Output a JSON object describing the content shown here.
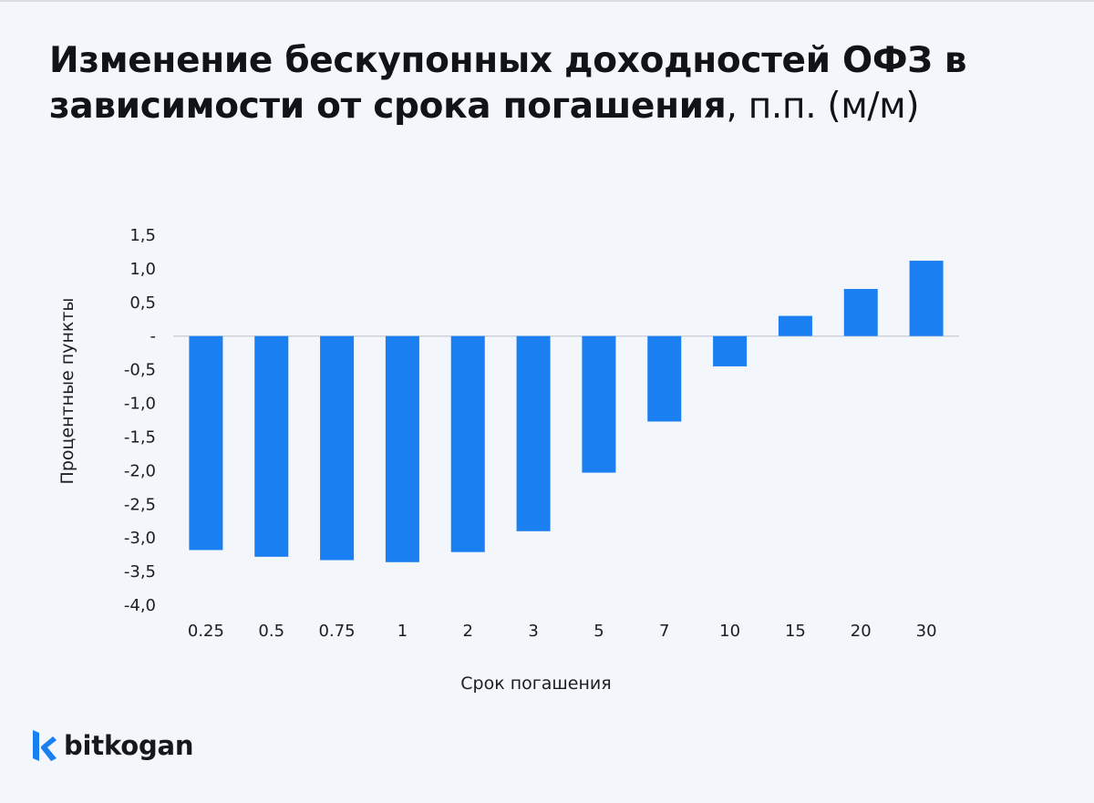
{
  "title": {
    "bold_line1": "Изменение бескупонных доходностей ОФЗ в",
    "bold_line2": "зависимости от срока погашения",
    "unit": ", п.п. (м/м)"
  },
  "brand": {
    "name": "bitkogan",
    "logo_icon": "bitkogan-k-logo-icon",
    "color": "#1a7ff0"
  },
  "chart_data": {
    "type": "bar",
    "title": "Изменение бескупонных доходностей ОФЗ в зависимости от срока погашения, п.п. (м/м)",
    "xlabel": "Срок погашения",
    "ylabel": "Процентные пункты",
    "categories": [
      "0.25",
      "0.5",
      "0.75",
      "1",
      "2",
      "3",
      "5",
      "7",
      "10",
      "15",
      "20",
      "30"
    ],
    "values": [
      -3.18,
      -3.28,
      -3.33,
      -3.36,
      -3.21,
      -2.9,
      -2.03,
      -1.27,
      -0.45,
      0.3,
      0.7,
      1.12
    ],
    "ylim": [
      -4.0,
      1.5
    ],
    "yticks": [
      1.5,
      1.0,
      0.5,
      0,
      -0.5,
      -1.0,
      -1.5,
      -2.0,
      -2.5,
      -3.0,
      -3.5,
      -4.0
    ],
    "ytick_labels": [
      "1,5",
      "1,0",
      "0,5",
      "-",
      "-0,5",
      "-1,0",
      "-1,5",
      "-2,0",
      "-2,5",
      "-3,0",
      "-3,5",
      "-4,0"
    ],
    "bar_color": "#1a7ff0",
    "grid": false,
    "legend": "none"
  }
}
